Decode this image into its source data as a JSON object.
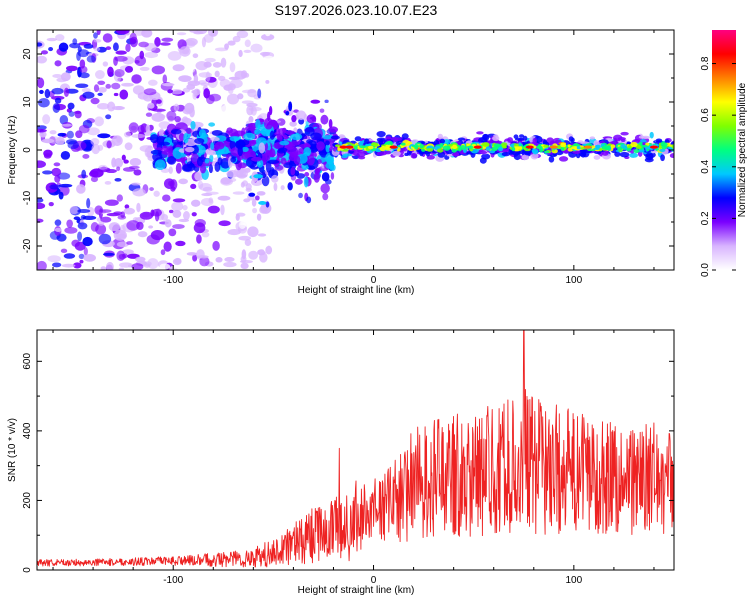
{
  "figure_title": "S197.2026.023.10.07.E23",
  "chart_data": [
    {
      "type": "heatmap",
      "xlabel": "Height of straight line (km)",
      "ylabel": "Frequency (Hz)",
      "xlim": [
        -168,
        150
      ],
      "ylim": [
        -25,
        25
      ],
      "xticks": [
        "-100",
        "0",
        "100"
      ],
      "xtick_values": [
        -100,
        0,
        100
      ],
      "yticks": [
        "-20",
        "-10",
        "0",
        "10",
        "20"
      ],
      "ytick_values": [
        -20,
        -10,
        0,
        10,
        20
      ],
      "colorbar": {
        "label": "Normalized spectral amplitude",
        "range": [
          0,
          0.93
        ],
        "ticks": [
          "0.0",
          "0.2",
          "0.4",
          "0.6",
          "0.8"
        ],
        "tick_values": [
          0.0,
          0.2,
          0.4,
          0.6,
          0.8
        ],
        "colors": [
          "#ffffff",
          "#d8b4ff",
          "#7a00ff",
          "#0000ff",
          "#00c8ff",
          "#00ff80",
          "#80ff00",
          "#ffff00",
          "#ff8000",
          "#ff0000",
          "#ff0080"
        ]
      },
      "features": {
        "noise_region_x": [
          -168,
          -62
        ],
        "transition_region_x": [
          -62,
          -20
        ],
        "signal_band_x": [
          -20,
          150
        ],
        "signal_band_frequency": [
          -2,
          2
        ],
        "peak_amplitude": 0.93
      }
    },
    {
      "type": "line",
      "xlabel": "Height of straight line (km)",
      "ylabel": "SNR (10 * v/v)",
      "xlim": [
        -168,
        150
      ],
      "ylim": [
        0,
        690
      ],
      "xticks": [
        "-100",
        "0",
        "100"
      ],
      "xtick_values": [
        -100,
        0,
        100
      ],
      "yticks": [
        "0",
        "200",
        "400",
        "600"
      ],
      "ytick_values": [
        0,
        200,
        400,
        600
      ],
      "series": [
        {
          "name": "SNR",
          "color": "#ee2222",
          "x": [
            -168,
            -140,
            -110,
            -90,
            -70,
            -60,
            -50,
            -40,
            -30,
            -20,
            -15,
            -10,
            -5,
            0,
            5,
            10,
            15,
            20,
            30,
            40,
            50,
            60,
            70,
            75,
            80,
            90,
            100,
            110,
            120,
            130,
            140,
            150
          ],
          "y": [
            20,
            22,
            25,
            28,
            32,
            35,
            50,
            75,
            100,
            120,
            110,
            140,
            160,
            180,
            175,
            200,
            210,
            250,
            260,
            280,
            270,
            290,
            300,
            320,
            300,
            290,
            280,
            275,
            270,
            260,
            265,
            250
          ],
          "spike_amplitude": [
            10,
            10,
            12,
            15,
            25,
            30,
            40,
            60,
            80,
            90,
            100,
            120,
            90,
            80,
            100,
            120,
            140,
            160,
            170,
            180,
            180,
            190,
            200,
            210,
            200,
            190,
            180,
            170,
            170,
            160,
            160,
            150
          ],
          "extremes": [
            {
              "x": -17,
              "y": 350
            },
            {
              "x": 75,
              "y": 690
            }
          ]
        }
      ]
    }
  ]
}
